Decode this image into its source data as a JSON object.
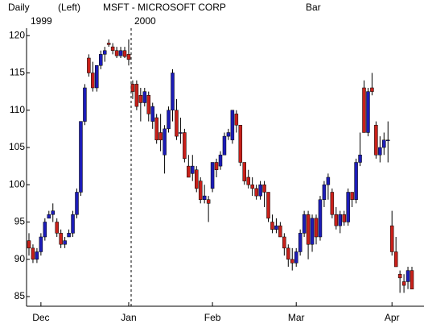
{
  "chart_data": {
    "type": "candlestick",
    "title": "MSFT - MICROSOFT CORP",
    "annotations": [
      "Daily",
      "(Left)",
      "Bar",
      "1999",
      "2000"
    ],
    "categories": [
      null,
      null,
      null,
      "Dec",
      null,
      null,
      null,
      null,
      null,
      null,
      null,
      null,
      null,
      null,
      null,
      null,
      null,
      null,
      null,
      null,
      null,
      null,
      null,
      null,
      null,
      "Jan",
      null,
      null,
      null,
      null,
      null,
      null,
      null,
      null,
      null,
      null,
      null,
      null,
      null,
      null,
      null,
      null,
      null,
      null,
      null,
      null,
      "Feb",
      null,
      null,
      null,
      null,
      null,
      null,
      null,
      null,
      null,
      null,
      null,
      null,
      null,
      null,
      null,
      null,
      null,
      null,
      null,
      null,
      "Mar",
      null,
      null,
      null,
      null,
      null,
      null,
      null,
      null,
      null,
      null,
      null,
      null,
      null,
      null,
      null,
      null,
      null,
      null,
      null,
      null,
      null,
      null,
      null,
      "Apr",
      null,
      null,
      null,
      null,
      null
    ],
    "open": [
      92.5,
      91.5,
      90,
      91,
      93,
      95.5,
      96,
      95,
      93.5,
      92,
      93,
      93.5,
      96,
      99,
      108.5,
      117,
      115,
      113,
      116,
      117.5,
      119,
      118.5,
      118,
      117.3,
      118,
      117.5,
      113.5,
      113.5,
      112,
      111,
      112,
      108.5,
      109,
      107,
      104,
      107.5,
      110,
      110,
      107,
      107,
      102.5,
      101.5,
      102,
      100.5,
      98,
      98,
      99.5,
      103,
      102.5,
      104,
      106.5,
      106,
      109.5,
      108,
      103,
      101,
      100,
      99.5,
      98.5,
      100,
      99,
      95,
      94,
      94.5,
      93,
      91.5,
      90,
      89.5,
      91,
      93.5,
      96,
      92,
      95.5,
      93,
      98,
      100,
      99,
      96,
      94.5,
      96,
      95,
      99,
      98,
      103,
      113,
      107,
      113,
      108,
      104,
      105,
      106,
      94.5,
      91,
      88,
      87,
      87,
      88.5
    ],
    "high": [
      93.5,
      92,
      91.5,
      93.5,
      95.5,
      96.5,
      97.5,
      95.5,
      94,
      93,
      94,
      96.5,
      99.5,
      108.5,
      113.5,
      117.5,
      116.5,
      116,
      118,
      118.5,
      119.5,
      119,
      118.5,
      118.5,
      118.5,
      119.5,
      114,
      114,
      113,
      113,
      112.5,
      111,
      109.5,
      109.5,
      108,
      110.5,
      115.5,
      111.5,
      109,
      107.5,
      104,
      104,
      102.5,
      101,
      100,
      98.5,
      103,
      103.5,
      104.5,
      107,
      107.5,
      110,
      110,
      108,
      103,
      102,
      101,
      100,
      100.5,
      100.5,
      99,
      96,
      95.5,
      95,
      93.5,
      92,
      91.5,
      91.5,
      94,
      96.5,
      96.5,
      96,
      96,
      98.5,
      100.5,
      101.5,
      99.5,
      97,
      96.5,
      96.5,
      99.5,
      99,
      103.5,
      107,
      114,
      113,
      115,
      108.5,
      106.5,
      107,
      108.5,
      96.5,
      93,
      88.5,
      88,
      89,
      89
    ],
    "low": [
      90.5,
      89.5,
      89.5,
      90.5,
      92.5,
      95.5,
      95,
      93,
      91.5,
      91.5,
      93,
      93,
      95.5,
      98.5,
      108,
      114.5,
      112.5,
      112.5,
      115.5,
      116.5,
      118.5,
      117.5,
      117,
      117,
      117,
      116,
      111.5,
      110,
      108.5,
      110.5,
      108.5,
      107.5,
      105.5,
      104.5,
      101.5,
      107,
      108.5,
      106,
      105.5,
      103,
      101,
      100.5,
      99,
      97.5,
      97.5,
      95,
      99,
      101,
      102,
      104,
      106,
      105.5,
      107,
      102.5,
      100,
      99.5,
      98.5,
      98,
      98,
      97,
      95,
      93.5,
      93.5,
      93,
      90.5,
      89,
      88.5,
      89,
      90.5,
      93,
      90,
      91,
      92,
      92.5,
      97,
      98,
      95.5,
      94,
      93.5,
      94.5,
      94.5,
      97,
      97.5,
      102.5,
      107,
      106.5,
      112,
      103.5,
      103,
      104,
      103,
      90.5,
      89,
      85.5,
      85.5,
      86,
      86
    ],
    "close": [
      91.5,
      90,
      91,
      93,
      95,
      96,
      96.5,
      93.5,
      92,
      92.5,
      93.5,
      96,
      99,
      108.5,
      113,
      115,
      113,
      116,
      117.5,
      118,
      118.8,
      118,
      117.3,
      118,
      117.2,
      116.8,
      112.5,
      110.5,
      111,
      112.5,
      109.5,
      110.5,
      106,
      106,
      107.5,
      110,
      115,
      106.5,
      107,
      103.5,
      101,
      102.5,
      99.5,
      98,
      98.5,
      97.5,
      103,
      102,
      104,
      106.5,
      107,
      110,
      108,
      103,
      100.5,
      100,
      99.5,
      98.5,
      100,
      99,
      95.5,
      94,
      94.5,
      93,
      91.5,
      90,
      89.5,
      91,
      93.5,
      96,
      92,
      95.5,
      93,
      98,
      100,
      101,
      96,
      94.5,
      96,
      95,
      99,
      98,
      103,
      104,
      107,
      112.5,
      112.5,
      104,
      105,
      106,
      106,
      91,
      89,
      87.5,
      86.5,
      88.5,
      86
    ],
    "up_color": "#1c1cb8",
    "down_color": "#c8201a",
    "ylim": [
      83.7,
      121
    ],
    "yticks": [
      85,
      90,
      95,
      100,
      105,
      110,
      115,
      120
    ]
  }
}
